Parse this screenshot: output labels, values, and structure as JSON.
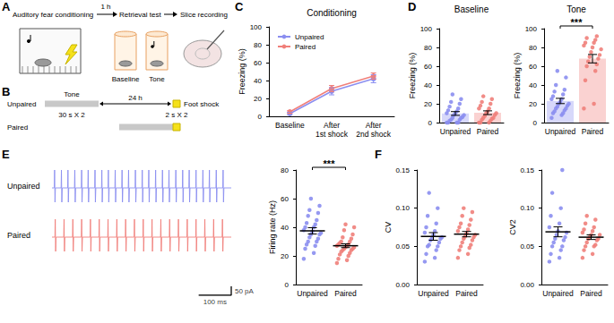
{
  "panel_labels": [
    "A",
    "B",
    "C",
    "D",
    "E",
    "F"
  ],
  "diagram_a": {
    "steps": [
      "Auditory fear conditioning",
      "Retrieval test",
      "Slice recording"
    ],
    "interval": "1 h",
    "retrieval_phases": [
      "Baseline",
      "Tone"
    ]
  },
  "diagram_b": {
    "stimulus": "Tone",
    "shock": "Foot shock",
    "delay": "24 h",
    "groups": [
      "Unpaired",
      "Paired"
    ],
    "tone_protocol": "30 s X 2",
    "shock_protocol": "2 s X 2"
  },
  "traces": {
    "type": "line",
    "xlim": [
      0,
      550
    ],
    "ylim": [
      -90,
      110
    ],
    "spike_peak": 100,
    "spike_trough": -80,
    "series": [
      {
        "name": "Unpaired",
        "color": "#8b8ef0",
        "spike_times": [
          8,
          29,
          49,
          70,
          91,
          111,
          132,
          153,
          173,
          194,
          215,
          235,
          256,
          277,
          297,
          318,
          339,
          359,
          380,
          401,
          421,
          442,
          463,
          483,
          504,
          525
        ]
      },
      {
        "name": "Paired",
        "color": "#f07f7a",
        "spike_times": [
          10,
          37,
          64,
          91,
          118,
          145,
          172,
          199,
          226,
          253,
          280,
          307,
          334,
          361,
          388,
          415,
          442,
          469,
          496,
          523
        ]
      }
    ],
    "scale_bar": {
      "time": 100,
      "time_label": "100 ms",
      "current": 50,
      "current_label": "50 pA"
    }
  },
  "chart_data": [
    {
      "type": "line",
      "title": "Conditioning",
      "ylabel": "Freezing (%)",
      "categories": [
        "Baseline",
        "After\n1st shock",
        "After\n2nd shock"
      ],
      "series": [
        {
          "name": "Unpaired",
          "color": "#8b8ef0",
          "values": [
            3,
            28,
            42
          ],
          "errors": [
            1.5,
            4,
            4.5
          ]
        },
        {
          "name": "Paired",
          "color": "#f07f7a",
          "values": [
            5,
            31,
            45
          ],
          "errors": [
            1.5,
            3.5,
            3.5
          ]
        }
      ],
      "ylim": [
        0,
        100
      ],
      "yticks": [
        0,
        20,
        40,
        60,
        80,
        100
      ],
      "legend": "upper left",
      "marker": "circle",
      "grid": false
    },
    {
      "type": "bar",
      "title": "Baseline",
      "ylabel": "Freezing (%)",
      "categories": [
        "Unpaired",
        "Paired"
      ],
      "colors": [
        "#8b8ef0",
        "#f07f7a"
      ],
      "values": [
        9.7,
        10.5
      ],
      "errors": [
        2,
        2
      ],
      "points": [
        [
          0,
          0,
          0,
          0,
          2,
          3,
          3,
          5,
          5,
          6,
          8,
          8,
          10,
          10,
          12,
          13,
          15,
          17,
          20,
          22,
          25,
          30
        ],
        [
          0,
          0,
          0,
          2,
          3,
          4,
          5,
          5,
          7,
          8,
          10,
          10,
          12,
          15,
          15,
          18,
          20,
          22,
          25,
          28
        ]
      ],
      "ylim": [
        0,
        100
      ],
      "yticks": [
        0,
        20,
        40,
        60,
        80,
        100
      ],
      "grid": false
    },
    {
      "type": "bar",
      "title": "Tone",
      "ylabel": "Freezing (%)",
      "categories": [
        "Unpaired",
        "Paired"
      ],
      "colors": [
        "#8b8ef0",
        "#f07f7a"
      ],
      "values": [
        23,
        68
      ],
      "errors": [
        2.8,
        4.5
      ],
      "points": [
        [
          5,
          8,
          10,
          10,
          12,
          13,
          15,
          15,
          17,
          18,
          20,
          20,
          22,
          25,
          25,
          28,
          30,
          33,
          35,
          40,
          48,
          55
        ],
        [
          15,
          20,
          45,
          55,
          60,
          62,
          65,
          68,
          70,
          72,
          75,
          78,
          80,
          82,
          85,
          85,
          88,
          90,
          92
        ]
      ],
      "significance": "***",
      "ylim": [
        0,
        100
      ],
      "yticks": [
        0,
        20,
        40,
        60,
        80,
        100
      ],
      "grid": false
    },
    {
      "type": "scatter",
      "ylabel": "Firing rate (Hz)",
      "categories": [
        "Unpaired",
        "Paired"
      ],
      "colors": [
        "#8b8ef0",
        "#f07f7a"
      ],
      "values": [
        37.5,
        27.1
      ],
      "errors": [
        2.2,
        1.3
      ],
      "points": [
        [
          18,
          22,
          25,
          27,
          28,
          30,
          30,
          32,
          33,
          35,
          35,
          36,
          37,
          38,
          40,
          40,
          42,
          43,
          45,
          48,
          50,
          52,
          55,
          60
        ],
        [
          15,
          17,
          18,
          20,
          21,
          22,
          23,
          24,
          24,
          25,
          25,
          26,
          26,
          27,
          27,
          28,
          28,
          29,
          30,
          30,
          32,
          33,
          35,
          38,
          40,
          42
        ]
      ],
      "significance": "***",
      "ylim": [
        0,
        80
      ],
      "yticks": [
        0,
        20,
        40,
        60,
        80
      ],
      "grid": false
    },
    {
      "type": "scatter",
      "ylabel": "CV",
      "categories": [
        "Unpaired",
        "Paired"
      ],
      "colors": [
        "#8b8ef0",
        "#f07f7a"
      ],
      "values": [
        0.063,
        0.066
      ],
      "errors": [
        0.005,
        0.0035
      ],
      "points": [
        [
          0.03,
          0.035,
          0.04,
          0.045,
          0.05,
          0.05,
          0.052,
          0.055,
          0.058,
          0.06,
          0.06,
          0.062,
          0.065,
          0.068,
          0.07,
          0.075,
          0.08,
          0.09,
          0.1,
          0.12
        ],
        [
          0.035,
          0.04,
          0.045,
          0.048,
          0.05,
          0.052,
          0.055,
          0.058,
          0.06,
          0.062,
          0.063,
          0.065,
          0.067,
          0.07,
          0.072,
          0.075,
          0.078,
          0.08,
          0.085,
          0.09,
          0.095,
          0.1
        ]
      ],
      "ylim": [
        0,
        0.15
      ],
      "yticks": [
        {
          "value": 0,
          "label": "0.00"
        },
        {
          "value": 0.05,
          "label": "0.05"
        },
        {
          "value": 0.1,
          "label": "0.10"
        },
        {
          "value": 0.15,
          "label": "0.15"
        }
      ],
      "grid": false
    },
    {
      "type": "scatter",
      "ylabel": "CV2",
      "categories": [
        "Unpaired",
        "Paired"
      ],
      "colors": [
        "#8b8ef0",
        "#f07f7a"
      ],
      "values": [
        0.069,
        0.062
      ],
      "errors": [
        0.0065,
        0.003
      ],
      "points": [
        [
          0.03,
          0.035,
          0.04,
          0.045,
          0.05,
          0.05,
          0.055,
          0.058,
          0.06,
          0.062,
          0.065,
          0.068,
          0.07,
          0.075,
          0.08,
          0.09,
          0.1,
          0.12,
          0.15
        ],
        [
          0.035,
          0.04,
          0.045,
          0.05,
          0.05,
          0.052,
          0.055,
          0.058,
          0.06,
          0.06,
          0.062,
          0.065,
          0.065,
          0.068,
          0.07,
          0.072,
          0.075,
          0.08,
          0.085,
          0.09
        ]
      ],
      "ylim": [
        0,
        0.15
      ],
      "yticks": [
        {
          "value": 0,
          "label": "0.00"
        },
        {
          "value": 0.05,
          "label": "0.05"
        },
        {
          "value": 0.1,
          "label": "0.10"
        },
        {
          "value": 0.15,
          "label": "0.15"
        }
      ],
      "grid": false
    }
  ]
}
